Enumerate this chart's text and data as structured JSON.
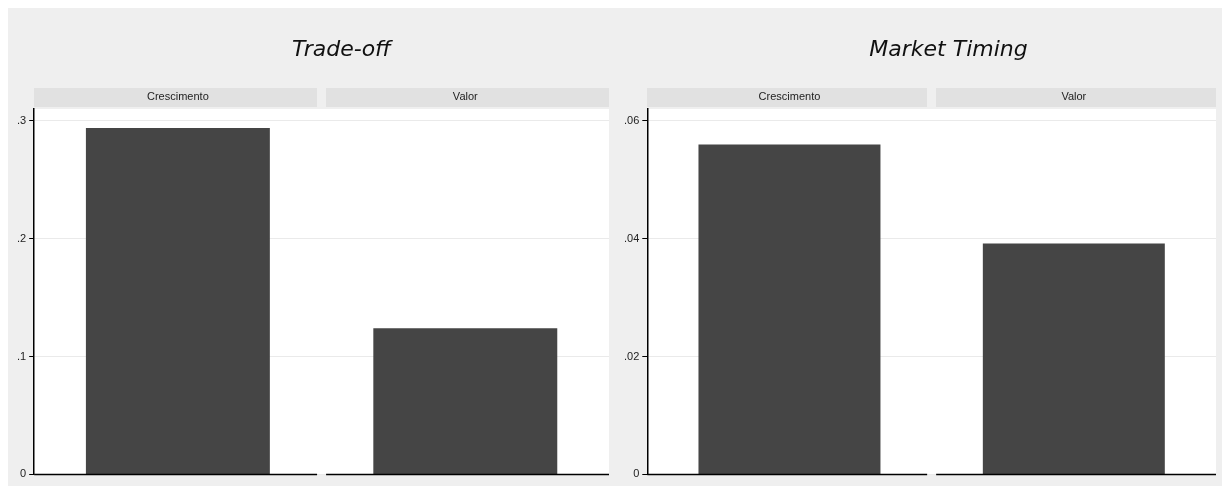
{
  "chart_data": [
    {
      "type": "bar",
      "title": "Trade-off",
      "categories": [
        "Crescimento",
        "Valor"
      ],
      "values": [
        0.294,
        0.124
      ],
      "color": "#454545",
      "ylim": [
        0,
        0.31
      ],
      "yticks": [
        0,
        {
          "value": 0.1,
          "label": ".1"
        },
        {
          "value": 0.2,
          "label": ".2"
        },
        {
          "value": 0.3,
          "label": ".3"
        }
      ],
      "grid": "y"
    },
    {
      "type": "bar",
      "title": "Market Timing",
      "categories": [
        "Crescimento",
        "Valor"
      ],
      "values": [
        0.056,
        0.0392
      ],
      "color": "#454545",
      "ylim": [
        0,
        0.062
      ],
      "yticks": [
        0,
        {
          "value": 0.02,
          "label": ".02"
        },
        {
          "value": 0.04,
          "label": ".04"
        },
        {
          "value": 0.06,
          "label": ".06"
        }
      ],
      "grid": "y"
    }
  ]
}
